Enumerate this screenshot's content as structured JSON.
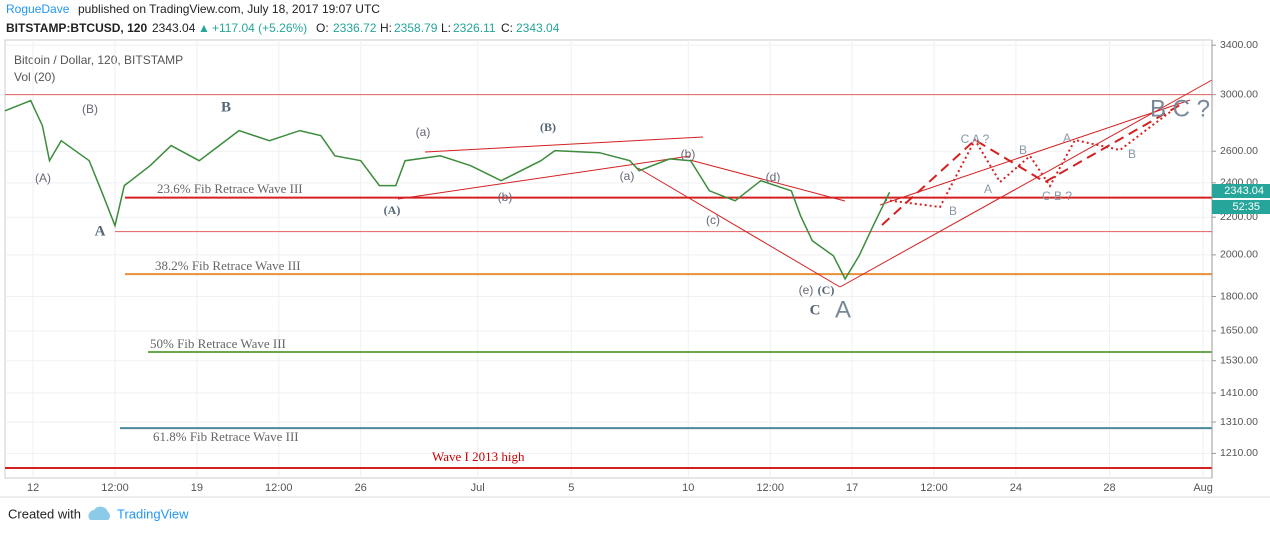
{
  "header": {
    "author": "RogueDave",
    "published": "published on TradingView.com, July 18, 2017 19:07 UTC",
    "symbol": "BITSTAMP:BTCUSD, 120",
    "last": "2343.04",
    "arrow": "▲",
    "change": "+117.04 (+5.26%)",
    "open_label": "O:",
    "open": "2336.72",
    "high_label": "H:",
    "high": "2358.79",
    "low_label": "L:",
    "low": "2326.11",
    "close_label": "C:",
    "close": "2343.04"
  },
  "chart_data": {
    "type": "line",
    "title": "Bitcoin / Dollar, 120, BITSTAMP",
    "subtitle": "Vol (20)",
    "x": [
      10.8,
      11.9,
      12.4,
      12.7,
      13.2,
      14.4,
      15.0,
      15.5,
      15.9,
      17.0,
      17.9,
      19.1,
      20.8,
      22.1,
      23.4,
      24.3,
      24.9,
      26.0,
      26.8,
      27.5,
      27.9,
      29.4,
      30.7,
      32.0,
      33.7,
      34.3,
      36.2,
      37.5,
      37.9,
      39.2,
      40.1,
      40.9,
      42.0,
      43.1,
      44.4,
      44.8,
      45.3,
      46.2,
      46.7,
      47.3,
      47.9,
      48.6
    ],
    "values": [
      2880,
      2955,
      2773,
      2538,
      2670,
      2538,
      2323,
      2153,
      2383,
      2506,
      2637,
      2538,
      2739,
      2670,
      2739,
      2704,
      2570,
      2538,
      2383,
      2383,
      2538,
      2570,
      2506,
      2413,
      2538,
      2604,
      2590,
      2538,
      2475,
      2550,
      2538,
      2352,
      2293,
      2413,
      2352,
      2208,
      2073,
      1995,
      1882,
      1995,
      2153,
      2343
    ],
    "color": "#3c8c3c",
    "xlim": [
      10.8,
      62.38
    ],
    "ylim": [
      1137,
      3445
    ],
    "log_scale": true,
    "xticks": [
      {
        "value": 12,
        "label": "12"
      },
      {
        "value": 15.5,
        "label": "12:00"
      },
      {
        "value": 19,
        "label": "19"
      },
      {
        "value": 22.5,
        "label": "12:00"
      },
      {
        "value": 26,
        "label": "26"
      },
      {
        "value": 31,
        "label": "Jul"
      },
      {
        "value": 35,
        "label": "5"
      },
      {
        "value": 40,
        "label": "10"
      },
      {
        "value": 43.5,
        "label": "12:00"
      },
      {
        "value": 47,
        "label": "17"
      },
      {
        "value": 50.5,
        "label": "12:00"
      },
      {
        "value": 54,
        "label": "24"
      },
      {
        "value": 58,
        "label": "28"
      },
      {
        "value": 62,
        "label": "Aug"
      }
    ],
    "yticks": [
      {
        "value": 3400,
        "label": "3400.00"
      },
      {
        "value": 3000,
        "label": "3000.00"
      },
      {
        "value": 2600,
        "label": "2600.00"
      },
      {
        "value": 2400,
        "label": "2400.00"
      },
      {
        "value": 2200,
        "label": "2200.00"
      },
      {
        "value": 2000,
        "label": "2000.00"
      },
      {
        "value": 1800,
        "label": "1800.00"
      },
      {
        "value": 1650,
        "label": "1650.00"
      },
      {
        "value": 1530,
        "label": "1530.00"
      },
      {
        "value": 1410,
        "label": "1410.00"
      },
      {
        "value": 1310,
        "label": "1310.00"
      },
      {
        "value": 1210,
        "label": "1210.00"
      }
    ],
    "grid": true,
    "levels": [
      {
        "value": 3000,
        "color": "#e06060"
      },
      {
        "value": 2312,
        "color": "#d42020",
        "label": "23.6% Fib Retrace Wave III"
      },
      {
        "value": 2121,
        "color": "#e06060"
      },
      {
        "value": 1905,
        "color": "#e8913a",
        "label": "38.2% Fib Retrace Wave III"
      },
      {
        "value": 1564,
        "color": "#6aa84f",
        "label": "50% Fib Retrace Wave III"
      },
      {
        "value": 1290,
        "color": "#4a8a9a",
        "label": "61.8% Fib Retrace Wave III"
      },
      {
        "value": 1166,
        "color": "#d42020",
        "label": "Wave I 2013 high"
      }
    ],
    "annotations": [
      "(B)",
      "(A)",
      "A",
      "B",
      "(a)",
      "(B)",
      "(A)",
      "(b)",
      "(a)",
      "(b)",
      "(c)",
      "(d)",
      "(e)",
      "(C)",
      "C",
      "A",
      "C A ?",
      "B",
      "A",
      "B",
      "C B ?",
      "A",
      "B",
      "B C ?"
    ],
    "last_price": "2343.04",
    "countdown": "52:35"
  },
  "footer": {
    "created": "Created with",
    "brand": "TradingView"
  }
}
